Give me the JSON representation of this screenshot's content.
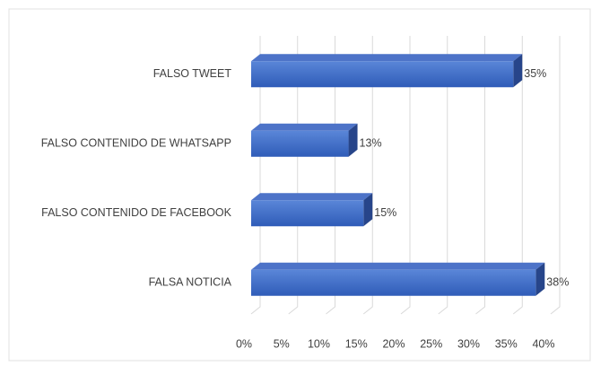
{
  "chart_data": {
    "type": "bar3d_horizontal",
    "categories": [
      "FALSO TWEET",
      "FALSO CONTENIDO DE WHATSAPP",
      "FALSO CONTENIDO DE FACEBOOK",
      "FALSA NOTICIA"
    ],
    "values": [
      35,
      13,
      15,
      38
    ],
    "value_labels": [
      "35%",
      "13%",
      "15%",
      "38%"
    ],
    "color": "#4472c4",
    "xlim": [
      0,
      40
    ],
    "xticks": [
      {
        "value": 0,
        "label": "0%"
      },
      {
        "value": 5,
        "label": "5%"
      },
      {
        "value": 10,
        "label": "10%"
      },
      {
        "value": 15,
        "label": "15%"
      },
      {
        "value": 20,
        "label": "20%"
      },
      {
        "value": 25,
        "label": "25%"
      },
      {
        "value": 30,
        "label": "30%"
      },
      {
        "value": 35,
        "label": "35%"
      },
      {
        "value": 40,
        "label": "40%"
      }
    ],
    "grid": true
  }
}
